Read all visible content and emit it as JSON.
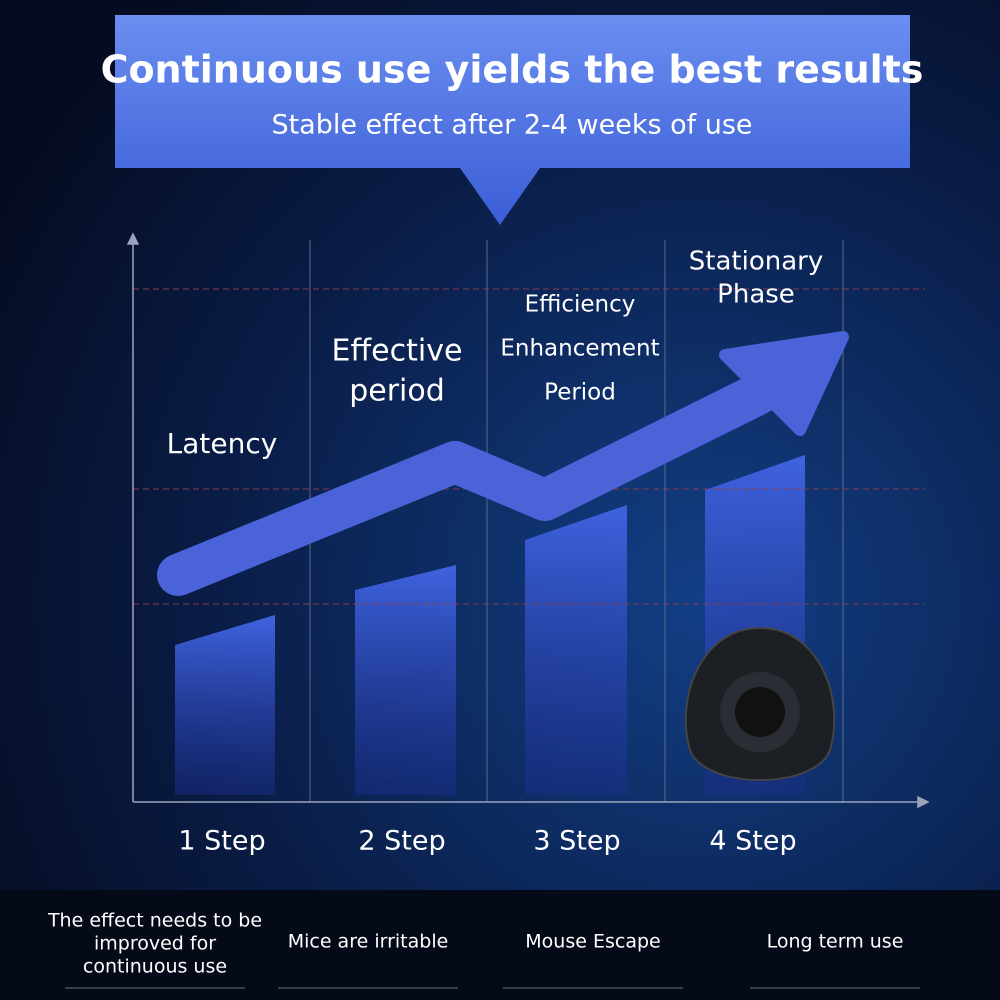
{
  "header": {
    "title": "Continuous use yields the best results",
    "subtitle": "Stable effect after 2-4 weeks of use"
  },
  "stages": [
    {
      "label": [
        "Latency"
      ],
      "step": "1 Step",
      "note": [
        "The effect needs to be",
        "improved for",
        "continuous use"
      ]
    },
    {
      "label": [
        "Effective",
        "period"
      ],
      "step": "2 Step",
      "note": [
        "Mice are irritable"
      ]
    },
    {
      "label": [
        "Efficiency",
        "Enhancement",
        "Period"
      ],
      "step": "3 Step",
      "note": [
        "Mouse Escape"
      ]
    },
    {
      "label": [
        "Stationary",
        "Phase"
      ],
      "step": "4 Step",
      "note": [
        "Long term use"
      ]
    }
  ]
}
